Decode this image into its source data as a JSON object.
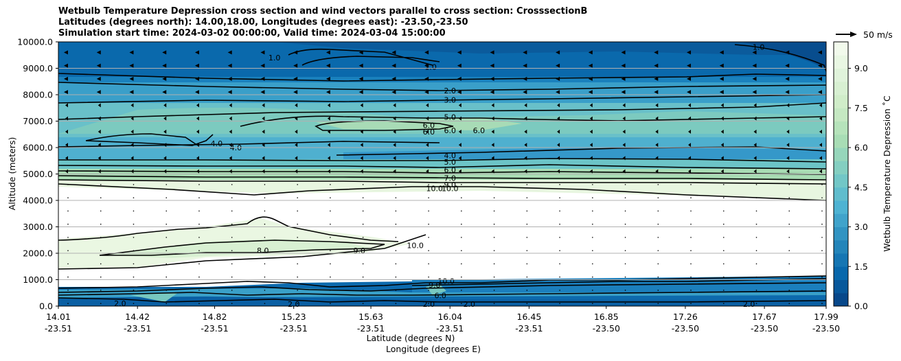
{
  "chart_data": {
    "type": "contourf",
    "title_lines": [
      "Wetbulb Temperature Depression cross section and wind vectors parallel to cross section: CrosssectionB",
      "Latitudes (degrees north): 14.00,18.00, Longitudes (degrees east): -23.50,-23.50",
      "Simulation start time: 2024-03-02 00:00:00, Valid time: 2024-03-04 15:00:00"
    ],
    "ylabel": "Altitude (meters)",
    "xlabel_lat": "Latitude (degrees N)",
    "xlabel_lon": "Longitude (degrees E)",
    "ylim": [
      0,
      10000
    ],
    "yticks": [
      "0.0",
      "1000.0",
      "2000.0",
      "3000.0",
      "4000.0",
      "5000.0",
      "6000.0",
      "7000.0",
      "8000.0",
      "9000.0",
      "10000.0"
    ],
    "ytick_values": [
      0,
      1000,
      2000,
      3000,
      4000,
      5000,
      6000,
      7000,
      8000,
      9000,
      10000
    ],
    "xlim": [
      14.01,
      17.99
    ],
    "x_positions": [
      14.01,
      14.42,
      14.82,
      15.23,
      15.63,
      16.04,
      16.45,
      16.85,
      17.26,
      17.67,
      17.99
    ],
    "xticks_lat": [
      "14.01",
      "14.42",
      "14.82",
      "15.23",
      "15.63",
      "16.04",
      "16.45",
      "16.85",
      "17.26",
      "17.67",
      "17.99"
    ],
    "xticks_lon": [
      "-23.51",
      "-23.51",
      "-23.51",
      "-23.51",
      "-23.51",
      "-23.51",
      "-23.51",
      "-23.50",
      "-23.50",
      "-23.50",
      "-23.50"
    ],
    "grid": "horizontal",
    "colorbar": {
      "label": "Wetbulb Temperature Depression ˚C",
      "range": [
        0,
        10
      ],
      "ticks": [
        "0.0",
        "1.5",
        "3.0",
        "4.5",
        "6.0",
        "7.5",
        "9.0"
      ],
      "tick_values": [
        0,
        1.5,
        3.0,
        4.5,
        6.0,
        7.5,
        9.0
      ]
    },
    "quiver_key": "50 m/s",
    "contour_labels": [
      {
        "text": "1.0",
        "x": 15.13,
        "y": 9400
      },
      {
        "text": "1.0",
        "x": 15.94,
        "y": 9050
      },
      {
        "text": "1.0",
        "x": 17.64,
        "y": 9800
      },
      {
        "text": "2.0",
        "x": 16.04,
        "y": 8150
      },
      {
        "text": "3.0",
        "x": 16.04,
        "y": 7800
      },
      {
        "text": "5.0",
        "x": 16.04,
        "y": 7150
      },
      {
        "text": "6.0",
        "x": 15.93,
        "y": 6850
      },
      {
        "text": "6.0",
        "x": 15.93,
        "y": 6600
      },
      {
        "text": "6.0",
        "x": 16.19,
        "y": 6650
      },
      {
        "text": "6.0",
        "x": 16.04,
        "y": 6650
      },
      {
        "text": "4.0",
        "x": 14.83,
        "y": 6150
      },
      {
        "text": "4.0",
        "x": 14.93,
        "y": 6000
      },
      {
        "text": "4.0",
        "x": 16.04,
        "y": 5700
      },
      {
        "text": "5.0",
        "x": 16.04,
        "y": 5450
      },
      {
        "text": "6.0",
        "x": 16.04,
        "y": 5150
      },
      {
        "text": "7.0",
        "x": 16.04,
        "y": 4850
      },
      {
        "text": "9.0",
        "x": 16.04,
        "y": 4600
      },
      {
        "text": "10.0",
        "x": 15.96,
        "y": 4450
      },
      {
        "text": "10.0",
        "x": 16.04,
        "y": 4450
      },
      {
        "text": "8.0",
        "x": 15.07,
        "y": 2100
      },
      {
        "text": "9.0",
        "x": 15.57,
        "y": 2100
      },
      {
        "text": "10.0",
        "x": 15.86,
        "y": 2300
      },
      {
        "text": "10.0",
        "x": 16.02,
        "y": 950
      },
      {
        "text": "9.0",
        "x": 15.96,
        "y": 800
      },
      {
        "text": "6.0",
        "x": 15.99,
        "y": 400
      },
      {
        "text": "2.0",
        "x": 14.33,
        "y": 100
      },
      {
        "text": "2.0",
        "x": 15.23,
        "y": 80
      },
      {
        "text": "2.0",
        "x": 15.93,
        "y": 80
      },
      {
        "text": "2.0",
        "x": 16.14,
        "y": 80
      },
      {
        "text": "2.0",
        "x": 17.59,
        "y": 80
      }
    ]
  }
}
